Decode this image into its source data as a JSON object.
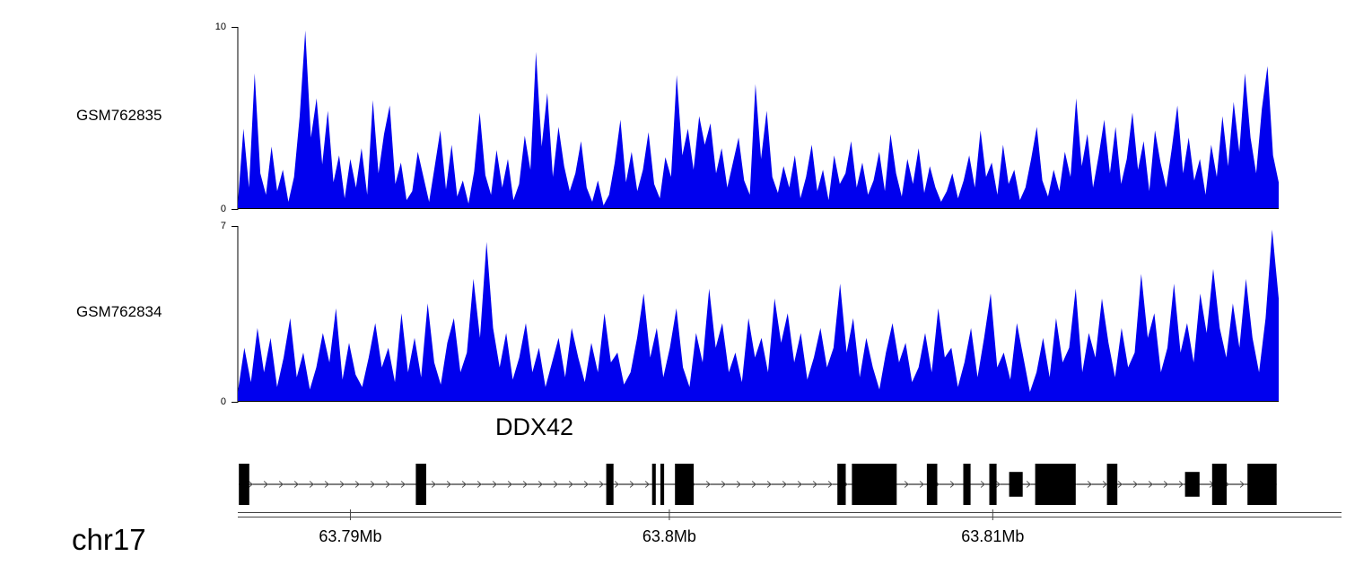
{
  "figure": {
    "background": "#ffffff"
  },
  "chart_data": [
    {
      "type": "area",
      "title": "GSM762835",
      "ylim": [
        0,
        10
      ],
      "yticks": [
        0,
        10
      ],
      "color": "#0000EE",
      "legend": "none",
      "grid": false,
      "values": [
        0.3,
        4.5,
        1.2,
        7.6,
        2.0,
        0.8,
        3.5,
        1.0,
        2.2,
        0.4,
        1.8,
        5.2,
        10.0,
        4.0,
        6.2,
        2.5,
        5.5,
        1.5,
        3.0,
        0.6,
        2.8,
        1.2,
        3.4,
        0.8,
        6.1,
        2.0,
        4.2,
        5.8,
        1.4,
        2.6,
        0.5,
        1.0,
        3.2,
        1.8,
        0.4,
        2.4,
        4.4,
        1.1,
        3.6,
        0.7,
        1.6,
        0.3,
        2.1,
        5.4,
        1.9,
        0.8,
        3.3,
        1.2,
        2.8,
        0.5,
        1.4,
        4.1,
        2.2,
        8.8,
        3.5,
        6.5,
        1.8,
        4.6,
        2.4,
        1.0,
        2.0,
        3.8,
        1.2,
        0.4,
        1.6,
        0.2,
        0.8,
        2.6,
        5.0,
        1.5,
        3.2,
        1.0,
        2.2,
        4.3,
        1.4,
        0.6,
        2.9,
        1.8,
        7.5,
        3.0,
        4.5,
        2.2,
        5.2,
        3.6,
        4.8,
        2.0,
        3.4,
        1.2,
        2.6,
        4.0,
        1.6,
        0.8,
        7.0,
        2.8,
        5.5,
        1.8,
        0.9,
        2.4,
        1.2,
        3.0,
        0.6,
        1.8,
        3.6,
        1.0,
        2.2,
        0.5,
        3.0,
        1.4,
        2.0,
        3.8,
        1.2,
        2.6,
        0.8,
        1.6,
        3.2,
        1.0,
        4.2,
        2.0,
        0.7,
        2.8,
        1.4,
        3.4,
        0.9,
        2.4,
        1.2,
        0.4,
        1.0,
        2.0,
        0.6,
        1.6,
        3.0,
        1.2,
        4.4,
        1.8,
        2.6,
        0.8,
        3.6,
        1.4,
        2.2,
        0.5,
        1.2,
        2.8,
        4.6,
        1.6,
        0.7,
        2.2,
        1.0,
        3.2,
        1.8,
        6.2,
        2.4,
        4.2,
        1.2,
        3.0,
        5.0,
        2.0,
        4.6,
        1.4,
        2.8,
        5.4,
        2.2,
        3.8,
        1.0,
        4.4,
        2.6,
        1.2,
        3.4,
        5.8,
        2.0,
        4.0,
        1.6,
        2.8,
        0.8,
        3.6,
        1.8,
        5.2,
        2.4,
        6.0,
        3.2,
        7.6,
        4.0,
        2.0,
        5.6,
        8.0,
        3.0,
        1.5
      ]
    },
    {
      "type": "area",
      "title": "GSM762834",
      "ylim": [
        0,
        7
      ],
      "yticks": [
        0,
        7
      ],
      "color": "#0000EE",
      "legend": "none",
      "grid": false,
      "values": [
        0.4,
        2.2,
        0.8,
        3.0,
        1.2,
        2.6,
        0.6,
        1.8,
        3.4,
        1.0,
        2.0,
        0.5,
        1.4,
        2.8,
        1.6,
        3.8,
        0.9,
        2.4,
        1.1,
        0.6,
        1.8,
        3.2,
        1.4,
        2.2,
        0.8,
        3.6,
        1.2,
        2.6,
        1.0,
        4.0,
        1.6,
        0.7,
        2.4,
        3.4,
        1.2,
        2.0,
        5.0,
        2.6,
        6.5,
        3.0,
        1.4,
        2.8,
        0.9,
        1.8,
        3.2,
        1.2,
        2.2,
        0.6,
        1.6,
        2.6,
        1.0,
        3.0,
        1.8,
        0.8,
        2.4,
        1.2,
        3.6,
        1.6,
        2.0,
        0.7,
        1.2,
        2.6,
        4.4,
        1.8,
        3.0,
        1.0,
        2.2,
        3.8,
        1.4,
        0.6,
        2.8,
        1.6,
        4.6,
        2.2,
        3.2,
        1.2,
        2.0,
        0.8,
        3.4,
        1.8,
        2.6,
        1.2,
        4.2,
        2.4,
        3.6,
        1.6,
        2.8,
        0.9,
        1.8,
        3.0,
        1.4,
        2.2,
        4.8,
        2.0,
        3.4,
        1.0,
        2.6,
        1.4,
        0.5,
        2.0,
        3.2,
        1.6,
        2.4,
        0.8,
        1.4,
        2.8,
        1.2,
        3.8,
        1.8,
        2.2,
        0.6,
        1.6,
        3.0,
        1.0,
        2.6,
        4.4,
        1.4,
        2.0,
        0.9,
        3.2,
        1.8,
        0.4,
        1.2,
        2.6,
        1.0,
        3.4,
        1.6,
        2.2,
        4.6,
        1.2,
        2.8,
        1.8,
        4.2,
        2.4,
        1.0,
        3.0,
        1.4,
        2.0,
        5.2,
        2.6,
        3.6,
        1.2,
        2.2,
        4.8,
        2.0,
        3.2,
        1.6,
        4.4,
        2.8,
        5.4,
        3.0,
        1.8,
        4.0,
        2.2,
        5.0,
        2.6,
        1.2,
        3.4,
        7.0,
        4.2
      ]
    }
  ],
  "gene_track": {
    "gene_name": "DDX42",
    "strand": "right",
    "color": "#000000",
    "arrow_color": "#555555",
    "exons": [
      {
        "start": 0.001,
        "width": 0.01,
        "h": 1
      },
      {
        "start": 0.171,
        "width": 0.01,
        "h": 1
      },
      {
        "start": 0.354,
        "width": 0.007,
        "h": 1
      },
      {
        "start": 0.398,
        "width": 0.0035,
        "h": 1
      },
      {
        "start": 0.406,
        "width": 0.0035,
        "h": 1
      },
      {
        "start": 0.42,
        "width": 0.018,
        "h": 1
      },
      {
        "start": 0.576,
        "width": 0.008,
        "h": 1
      },
      {
        "start": 0.59,
        "width": 0.043,
        "h": 1
      },
      {
        "start": 0.662,
        "width": 0.01,
        "h": 1
      },
      {
        "start": 0.697,
        "width": 0.007,
        "h": 1
      },
      {
        "start": 0.722,
        "width": 0.007,
        "h": 1
      },
      {
        "start": 0.741,
        "width": 0.013,
        "h": 0.6
      },
      {
        "start": 0.766,
        "width": 0.039,
        "h": 1
      },
      {
        "start": 0.835,
        "width": 0.01,
        "h": 1
      },
      {
        "start": 0.91,
        "width": 0.014,
        "h": 0.6
      },
      {
        "start": 0.936,
        "width": 0.014,
        "h": 1
      },
      {
        "start": 0.97,
        "width": 0.028,
        "h": 1
      }
    ]
  },
  "axis_track": {
    "chromosome": "chr17",
    "ticks": [
      {
        "label": "63.79Mb",
        "pos": 0.102
      },
      {
        "label": "63.8Mb",
        "pos": 0.391
      },
      {
        "label": "63.81Mb",
        "pos": 0.684
      }
    ]
  }
}
